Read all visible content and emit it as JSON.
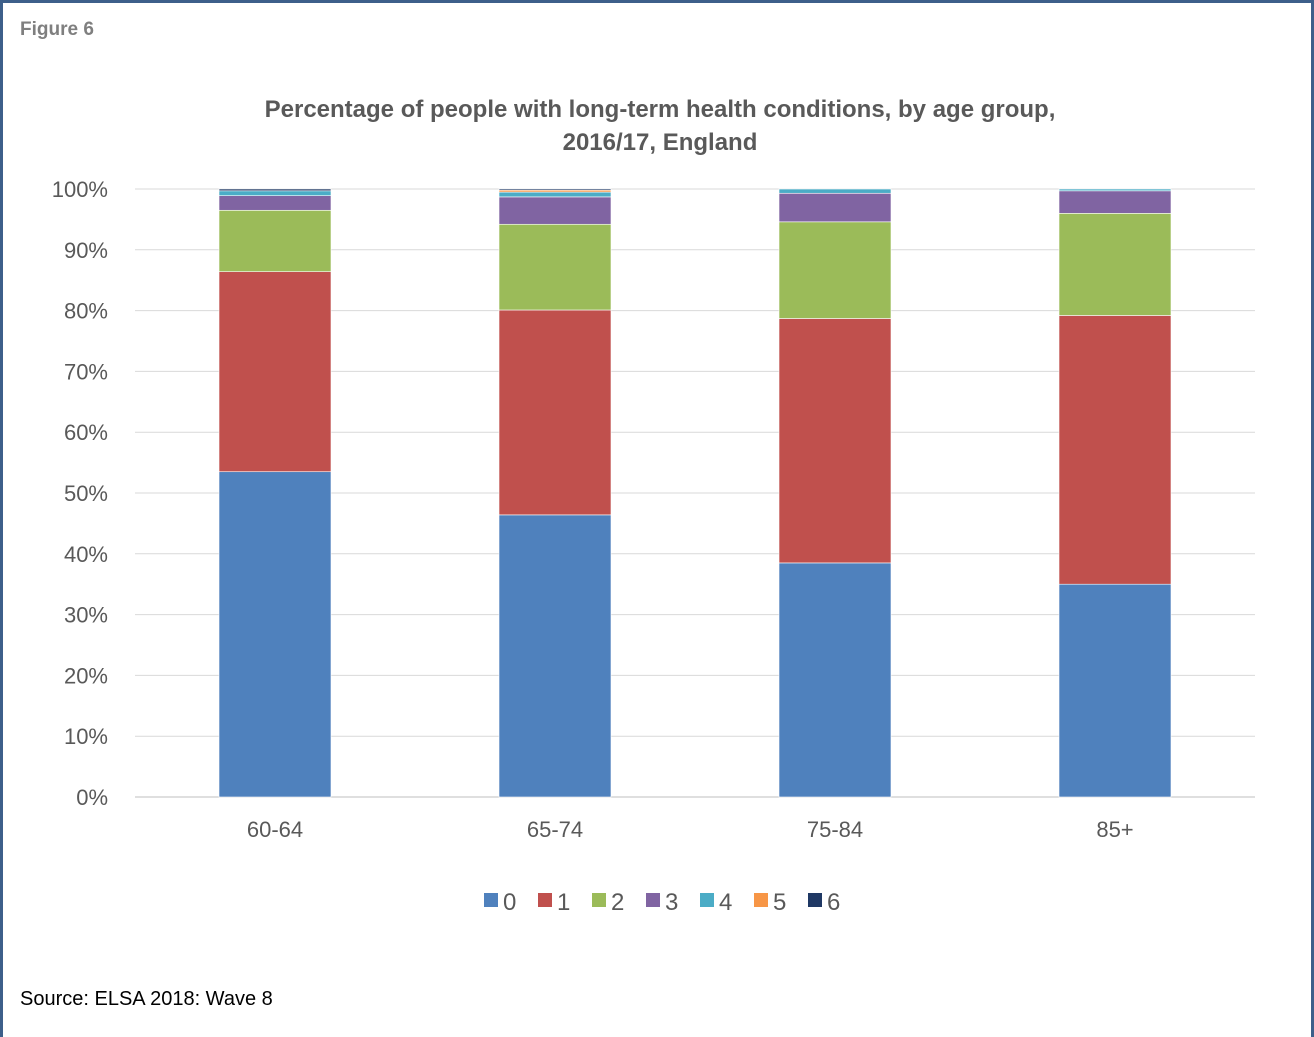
{
  "figure_label": "Figure 6",
  "source": "Source: ELSA 2018: Wave 8",
  "colors": {
    "0": "#4f81bd",
    "1": "#c0504d",
    "2": "#9bbb59",
    "3": "#8064a2",
    "4": "#4bacc6",
    "5": "#f79646",
    "6": "#1f3864",
    "grid": "#d9d9d9",
    "text": "#595959",
    "frame": "#3d5f8a"
  },
  "chart_data": {
    "type": "bar",
    "stacked": true,
    "title_line1": "Percentage of people with long-term health conditions, by age group,",
    "title_line2": "2016/17, England",
    "xlabel": "",
    "ylabel": "",
    "ylim": [
      0,
      100
    ],
    "y_ticks": [
      "0%",
      "10%",
      "20%",
      "30%",
      "40%",
      "50%",
      "60%",
      "70%",
      "80%",
      "90%",
      "100%"
    ],
    "grid": true,
    "legend_position": "bottom",
    "categories": [
      "60-64",
      "65-74",
      "75-84",
      "85+"
    ],
    "series": [
      {
        "name": "0",
        "values": [
          53.5,
          46.4,
          38.5,
          35.0
        ]
      },
      {
        "name": "1",
        "values": [
          32.9,
          33.7,
          40.2,
          44.2
        ]
      },
      {
        "name": "2",
        "values": [
          10.1,
          14.1,
          15.9,
          16.8
        ]
      },
      {
        "name": "3",
        "values": [
          2.4,
          4.5,
          4.7,
          3.7
        ]
      },
      {
        "name": "4",
        "values": [
          0.8,
          0.8,
          0.7,
          0.3
        ]
      },
      {
        "name": "5",
        "values": [
          0.0,
          0.3,
          0.0,
          0.0
        ]
      },
      {
        "name": "6",
        "values": [
          0.3,
          0.2,
          0.0,
          0.0
        ]
      }
    ]
  }
}
